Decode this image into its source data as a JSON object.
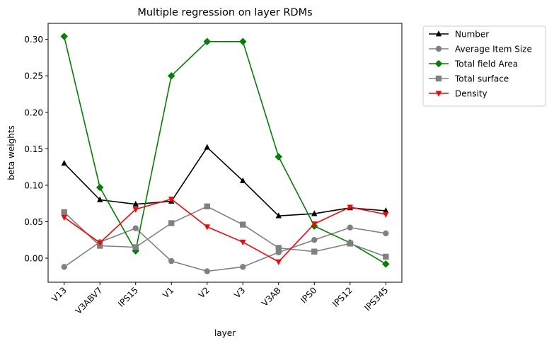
{
  "chart_data": {
    "type": "line",
    "title": "Multiple regression on layer RDMs",
    "xlabel": "layer",
    "ylabel": "beta weights",
    "categories": [
      "V13",
      "V3ABV7",
      "IPS15",
      "V1",
      "V2",
      "V3",
      "V3AB",
      "IPS0",
      "IPS12",
      "IPS345"
    ],
    "ylim": [
      -0.033,
      0.322
    ],
    "yticks": [
      0.0,
      0.05,
      0.1,
      0.15,
      0.2,
      0.25,
      0.3
    ],
    "ytick_labels": [
      "0.00",
      "0.05",
      "0.10",
      "0.15",
      "0.20",
      "0.25",
      "0.30"
    ],
    "grid": false,
    "legend_position": "outside upper right",
    "series": [
      {
        "name": "Number",
        "color": "#000000",
        "marker": "triangle-up",
        "values": [
          0.13,
          0.08,
          0.074,
          0.078,
          0.152,
          0.106,
          0.058,
          0.061,
          0.069,
          0.065
        ]
      },
      {
        "name": "Average Item Size",
        "color": "#808080",
        "marker": "circle",
        "values": [
          -0.012,
          0.022,
          0.041,
          -0.004,
          -0.018,
          -0.012,
          0.008,
          0.025,
          0.042,
          0.034
        ]
      },
      {
        "name": "Total field Area",
        "color": "#008000",
        "marker": "diamond",
        "values": [
          0.304,
          0.097,
          0.01,
          0.25,
          0.297,
          0.297,
          0.139,
          0.044,
          0.021,
          -0.008
        ]
      },
      {
        "name": "Total surface",
        "color": "#808080",
        "marker": "square",
        "values": [
          0.063,
          0.017,
          0.015,
          0.048,
          0.071,
          0.046,
          0.014,
          0.009,
          0.02,
          0.002
        ]
      },
      {
        "name": "Density",
        "color": "#ff0000",
        "marker": "triangle-down",
        "values": [
          0.056,
          0.021,
          0.067,
          0.081,
          0.043,
          0.022,
          -0.005,
          0.047,
          0.07,
          0.06
        ]
      }
    ]
  }
}
